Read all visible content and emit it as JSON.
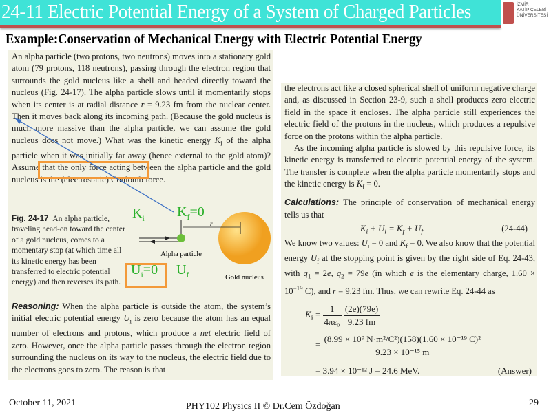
{
  "header": {
    "title": "24-11 Electric Potential Energy of a System of Charged Particles",
    "logo_text": [
      "İZMİR",
      "KATİP ÇELEBİ",
      "ÜNİVERSİTESİ"
    ]
  },
  "subtitle": "Example:Conservation of Mechanical Energy with Electric Potential Energy",
  "left": {
    "intro": [
      [
        "An alpha particle (two protons, two neutrons) moves into a stationary gold atom (79 protons, 118 neutrons), passing through the electron region that surrounds the gold nucleus like a shell and headed directly toward the nucleus (Fig. 24-17). The alpha particle slows until it momentarily stops when its center is at radial distance ",
        ""
      ],
      [
        "r",
        "i"
      ],
      [
        " = 9.23 fm from the nuclear center. Then it moves back along its incoming path. (Because the gold nucleus is much more massive than the alpha particle, we can assume the gold nucleus does not move.) What was the kinetic energy ",
        ""
      ],
      [
        "K",
        "i"
      ],
      [
        "i",
        "sub"
      ],
      [
        " of the alpha particle when it was initially far away (hence external to the gold atom)? Assume that the only force acting between the alpha particle and the gold nucleus is the (electrostatic) Coulomb force.",
        ""
      ]
    ],
    "fig_label": "Fig. 24-17",
    "fig_caption": "An alpha particle, traveling head-on toward the center of a gold nucleus, comes to a momentary stop (at which time all its kinetic energy has been transferred to electric potential energy) and then reverses its path.",
    "diagram": {
      "alpha_label": "Alpha particle",
      "gold_label": "Gold nucleus",
      "r_label": "r",
      "ki": "K",
      "ki_sub": "i",
      "kf": "K",
      "kf_sub": "f",
      "kf_val": "=0",
      "ui": "U",
      "ui_sub": "i",
      "ui_val": "=0",
      "uf": "U",
      "uf_sub": "f"
    },
    "reasoning": [
      [
        "Reasoning:",
        "rb"
      ],
      [
        " When the alpha particle is outside the atom, the system’s initial electric potential energy ",
        ""
      ],
      [
        "U",
        "i"
      ],
      [
        "i",
        "sub"
      ],
      [
        " is zero because the atom has an equal number of electrons and protons, which produce a ",
        ""
      ],
      [
        "net",
        "i"
      ],
      [
        " electric field of zero. However, once the alpha particle passes through the electron region surrounding the nucleus on its way to the nucleus, the electric field due to the electrons goes to zero. The reason is that",
        ""
      ]
    ]
  },
  "right": {
    "p1": [
      [
        "the electrons act like a closed spherical shell of uniform negative charge and, as discussed in Section 23-9, such a shell produces zero electric field in the space it encloses. The alpha particle still experiences the electric field of the protons in the nucleus, which produces a repulsive force on the protons within the alpha particle.",
        ""
      ]
    ],
    "p2": [
      [
        "As the incoming alpha particle is slowed by this repulsive force, its kinetic energy is transferred to electric potential energy of the system. The transfer is complete when the alpha particle momentarily stops and the kinetic energy is ",
        ""
      ],
      [
        "K",
        "i"
      ],
      [
        "f",
        "sub"
      ],
      [
        " = 0.",
        ""
      ]
    ],
    "p3": [
      [
        "Calculations:",
        "rb"
      ],
      [
        " The principle of conservation of mechanical energy tells us that",
        ""
      ]
    ],
    "eq1": "Kᵢ + Uᵢ = K_f + U_f.",
    "eq1_num": "(24-44)",
    "p4": [
      [
        "We know two values: ",
        ""
      ],
      [
        "U",
        "i"
      ],
      [
        "i",
        "sub"
      ],
      [
        " = 0 and ",
        ""
      ],
      [
        "K",
        "i"
      ],
      [
        "f",
        "sub"
      ],
      [
        " = 0. We also know that the potential energy ",
        ""
      ],
      [
        "U",
        "i"
      ],
      [
        "f",
        "sub"
      ],
      [
        " at the stopping point is given by the right side of Eq. 24-43, with ",
        ""
      ],
      [
        "q",
        "i"
      ],
      [
        "1",
        "sub"
      ],
      [
        " = 2",
        ""
      ],
      [
        "e",
        "i"
      ],
      [
        ", ",
        ""
      ],
      [
        "q",
        "i"
      ],
      [
        "2",
        "sub"
      ],
      [
        " = 79",
        ""
      ],
      [
        "e",
        "i"
      ],
      [
        " (in which ",
        ""
      ],
      [
        "e",
        "i"
      ],
      [
        " is the elementary charge, 1.60 × 10",
        ""
      ],
      [
        "−19",
        "sup"
      ],
      [
        " C), and ",
        ""
      ],
      [
        "r",
        "i"
      ],
      [
        " = 9.23 fm. Thus, we can rewrite Eq. 24-44 as",
        ""
      ]
    ],
    "calc": {
      "lhs": "K",
      "lhs_sub": "i",
      "f1_num": "1",
      "f1_den": "4πε₀",
      "f2_num": "(2e)(79e)",
      "f2_den": "9.23 fm",
      "l2_num": "(8.99 × 10⁹ N·m²/C²)(158)(1.60 × 10⁻¹⁹ C)²",
      "l2_den": "9.23 × 10⁻¹⁵ m",
      "l3": "= 3.94 × 10⁻¹² J = 24.6 MeV.",
      "answer": "(Answer)"
    }
  },
  "footer": {
    "date": "October 11, 2021",
    "center": "PHY102 Physics II © Dr.Cem Özdoğan",
    "page": "29"
  },
  "colors": {
    "title_bar": "#3fe3d7",
    "title_border": "#c0504d",
    "highlight": "#f39a3a",
    "annotation": "#2ab02a",
    "arrow": "#3a6fc4"
  }
}
